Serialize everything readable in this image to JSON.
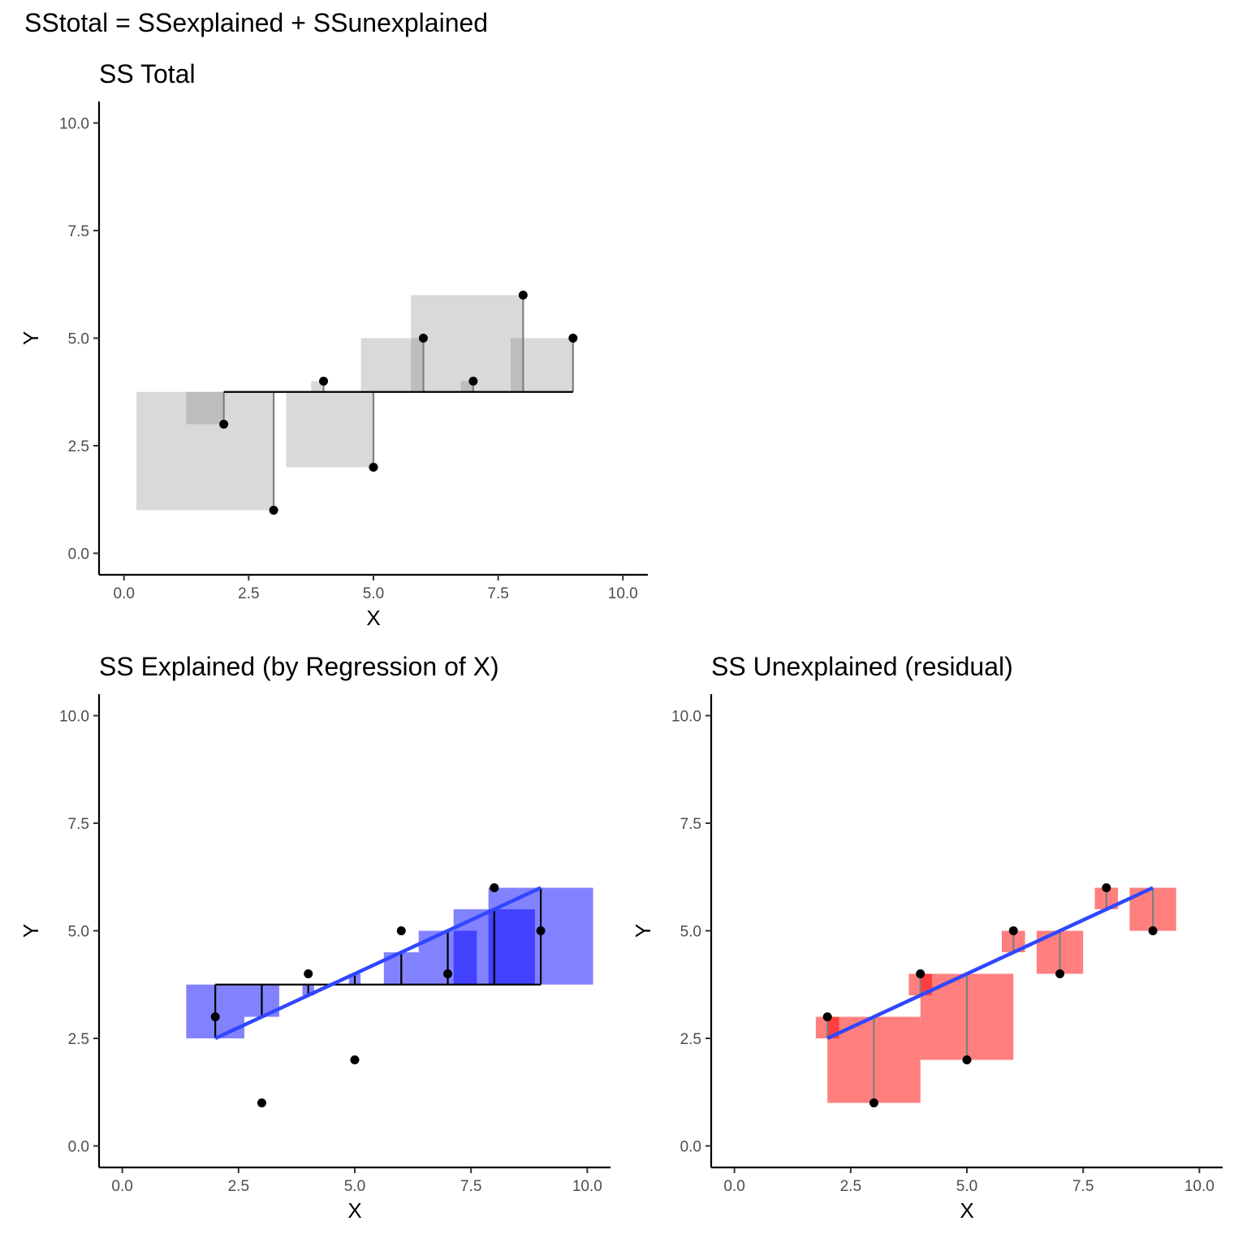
{
  "figure": {
    "title": "SStotal = SSexplained + SSunexplained"
  },
  "colors": {
    "total_square": "#d9d9d9",
    "total_overlap": "#bdbdbd",
    "explained_square": "#0000ff",
    "unexplained_square": "#ff0000",
    "regression_line": "#3047ff",
    "segment_grey": "#7f7f7f",
    "point": "#000000"
  },
  "chart_data": [
    {
      "id": "ss-total",
      "type": "scatter",
      "title": "SS Total",
      "xlabel": "X",
      "ylabel": "Y",
      "xlim": [
        -0.5,
        10.5
      ],
      "ylim": [
        -0.5,
        10.5
      ],
      "x_ticks": [
        "0.0",
        "2.5",
        "5.0",
        "7.5",
        "10.0"
      ],
      "y_ticks": [
        "0.0",
        "2.5",
        "5.0",
        "7.5",
        "10.0"
      ],
      "points": [
        {
          "x": 2,
          "y": 3
        },
        {
          "x": 3,
          "y": 1
        },
        {
          "x": 4,
          "y": 4
        },
        {
          "x": 5,
          "y": 2
        },
        {
          "x": 6,
          "y": 5
        },
        {
          "x": 7,
          "y": 4
        },
        {
          "x": 8,
          "y": 6
        },
        {
          "x": 9,
          "y": 5
        }
      ],
      "mean_y": 3.75,
      "mean_line_x": [
        2,
        9
      ],
      "grid": false
    },
    {
      "id": "ss-explained",
      "type": "scatter",
      "title": "SS Explained (by Regression of X)",
      "xlabel": "X",
      "ylabel": "Y",
      "xlim": [
        -0.5,
        10.5
      ],
      "ylim": [
        -0.5,
        10.5
      ],
      "x_ticks": [
        "0.0",
        "2.5",
        "5.0",
        "7.5",
        "10.0"
      ],
      "y_ticks": [
        "0.0",
        "2.5",
        "5.0",
        "7.5",
        "10.0"
      ],
      "points": [
        {
          "x": 2,
          "y": 3
        },
        {
          "x": 3,
          "y": 1
        },
        {
          "x": 4,
          "y": 4
        },
        {
          "x": 5,
          "y": 2
        },
        {
          "x": 6,
          "y": 5
        },
        {
          "x": 7,
          "y": 4
        },
        {
          "x": 8,
          "y": 6
        },
        {
          "x": 9,
          "y": 5
        }
      ],
      "mean_y": 3.75,
      "regression": {
        "intercept": 1.5,
        "slope": 0.5,
        "x_range": [
          2,
          9
        ]
      },
      "grid": false
    },
    {
      "id": "ss-unexplained",
      "type": "scatter",
      "title": "SS Unexplained (residual)",
      "xlabel": "X",
      "ylabel": "Y",
      "xlim": [
        -0.5,
        10.5
      ],
      "ylim": [
        -0.5,
        10.5
      ],
      "x_ticks": [
        "0.0",
        "2.5",
        "5.0",
        "7.5",
        "10.0"
      ],
      "y_ticks": [
        "0.0",
        "2.5",
        "5.0",
        "7.5",
        "10.0"
      ],
      "points": [
        {
          "x": 2,
          "y": 3
        },
        {
          "x": 3,
          "y": 1
        },
        {
          "x": 4,
          "y": 4
        },
        {
          "x": 5,
          "y": 2
        },
        {
          "x": 6,
          "y": 5
        },
        {
          "x": 7,
          "y": 4
        },
        {
          "x": 8,
          "y": 6
        },
        {
          "x": 9,
          "y": 5
        }
      ],
      "regression": {
        "intercept": 1.5,
        "slope": 0.5,
        "x_range": [
          2,
          9
        ]
      },
      "grid": false
    }
  ]
}
